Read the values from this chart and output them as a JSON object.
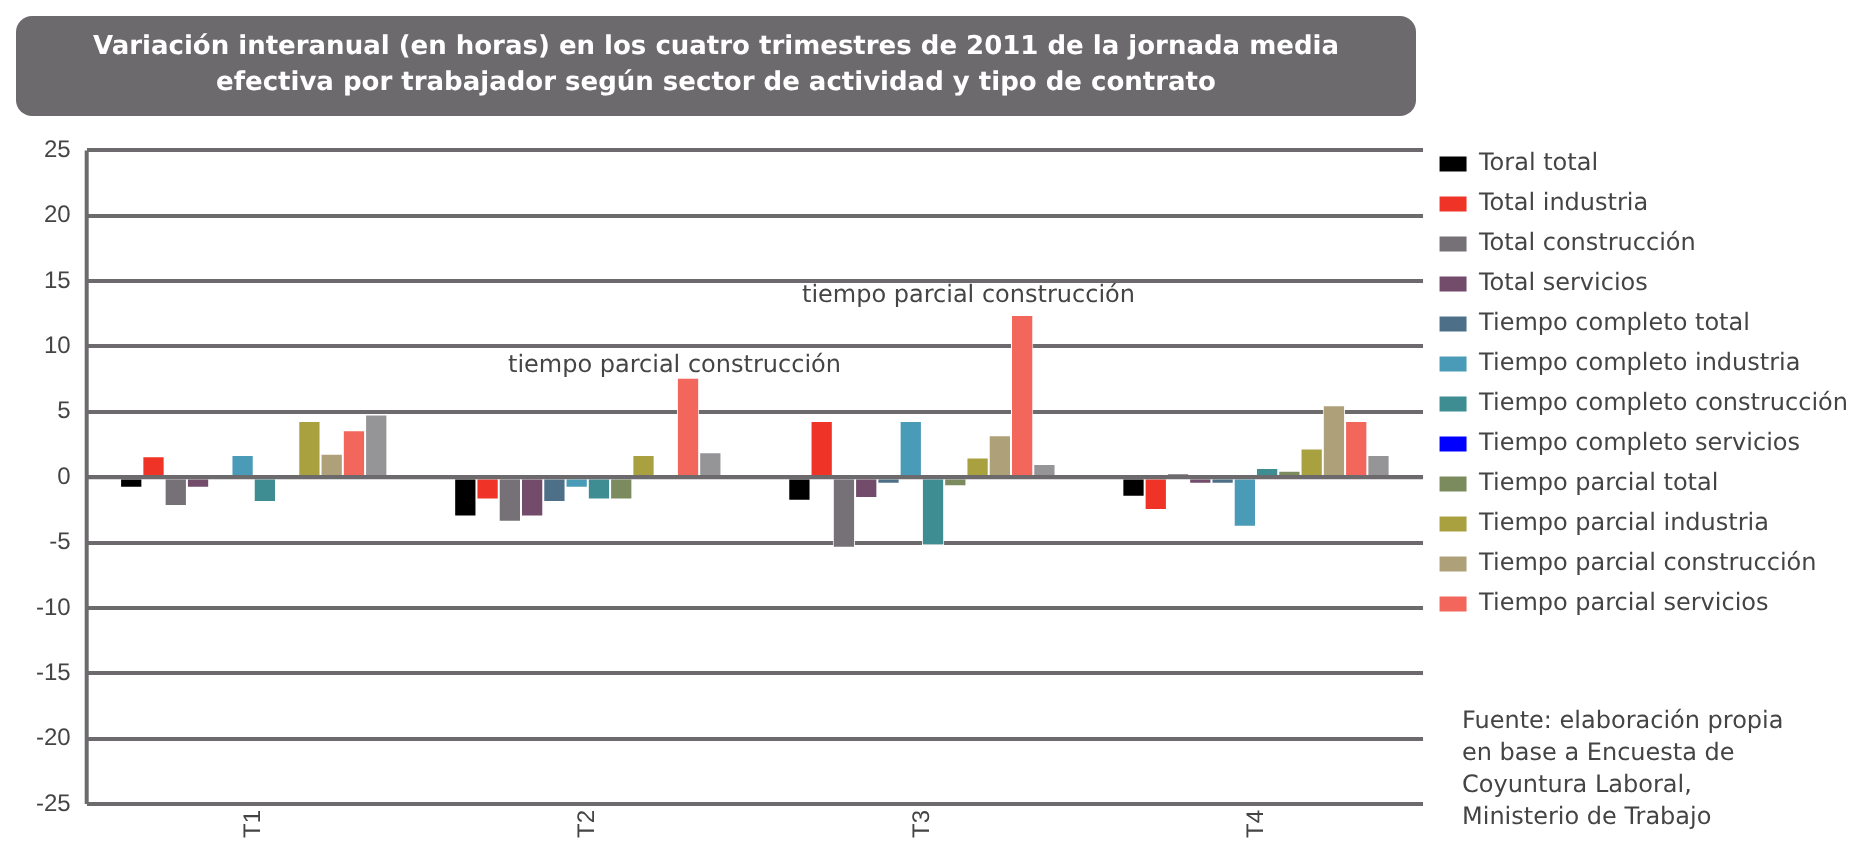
{
  "chart_data": {
    "type": "bar",
    "title": "Variación interanual (en horas) en los cuatro trimestres de 2011 de la jornada media efectiva por trabajador según sector de actividad y tipo de contrato",
    "categories": [
      "T1",
      "T2",
      "T3",
      "T4"
    ],
    "series": [
      {
        "name": "Toral total",
        "color": "#000000",
        "values": [
          -0.8,
          -3.0,
          -1.8,
          -1.5
        ]
      },
      {
        "name": "Total industria",
        "color": "#ef3326",
        "values": [
          1.6,
          -1.7,
          4.3,
          -2.5
        ]
      },
      {
        "name": "Total construcción",
        "color": "#767176",
        "values": [
          -2.2,
          -3.4,
          -5.4,
          0.3
        ]
      },
      {
        "name": "Total servicios",
        "color": "#734b6b",
        "values": [
          -0.8,
          -3.0,
          -1.6,
          -0.5
        ]
      },
      {
        "name": "Tiempo completo total",
        "color": "#4d7088",
        "values": [
          0,
          -1.9,
          -0.5,
          -0.5
        ]
      },
      {
        "name": "Tiempo completo industria",
        "color": "#4a9bb8",
        "values": [
          1.7,
          -0.8,
          4.3,
          -3.8
        ]
      },
      {
        "name": "Tiempo completo construcción",
        "color": "#3d8d92",
        "values": [
          -1.9,
          -1.7,
          -5.2,
          0.7
        ]
      },
      {
        "name": "Tiempo completo servicios",
        "color": "#0000ff",
        "values": [
          null,
          null,
          null,
          null
        ]
      },
      {
        "name": "Tiempo parcial total",
        "color": "#7b8b5e",
        "values": [
          0,
          -1.7,
          -0.7,
          0.5
        ]
      },
      {
        "name": "Tiempo parcial industria",
        "color": "#a9a13f",
        "values": [
          4.3,
          1.7,
          1.5,
          2.2
        ]
      },
      {
        "name": "Tiempo parcial construcción",
        "color": "#aea078",
        "values": [
          1.8,
          0,
          3.2,
          5.5
        ]
      },
      {
        "name": "Tiempo parcial servicios",
        "color": "#f2665c",
        "values": [
          3.6,
          7.6,
          12.4,
          4.3
        ]
      },
      {
        "color": "#959497",
        "values": [
          4.8,
          1.9,
          1.0,
          1.7
        ]
      }
    ],
    "ylim": [
      -25,
      25
    ],
    "yticks": [
      -25,
      -20,
      -15,
      -10,
      -5,
      0,
      5,
      10,
      15,
      20,
      25
    ],
    "grid": "y",
    "legend": "right",
    "annotations": [
      "tiempo parcial construcción",
      "tiempo parcial construcción",
      "Fuente: elaboración propia en base a Encuesta de Coyuntura Laboral, Ministerio de Trabajo"
    ]
  }
}
